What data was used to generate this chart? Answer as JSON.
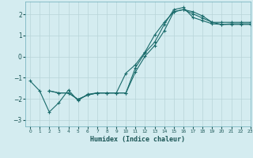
{
  "background_color": "#d4ecf0",
  "grid_color": "#b8d4d8",
  "line_color": "#1a6b6b",
  "xlabel": "Humidex (Indice chaleur)",
  "xlim": [
    -0.5,
    23
  ],
  "ylim": [
    -3.3,
    2.6
  ],
  "yticks": [
    -3,
    -2,
    -1,
    0,
    1,
    2
  ],
  "xticks": [
    0,
    1,
    2,
    3,
    4,
    5,
    6,
    7,
    8,
    9,
    10,
    11,
    12,
    13,
    14,
    15,
    16,
    17,
    18,
    19,
    20,
    21,
    22,
    23
  ],
  "line1_x": [
    0,
    1,
    2,
    3,
    4,
    5,
    6,
    7,
    8,
    9,
    10,
    11,
    12,
    13,
    14,
    15,
    16,
    17,
    18,
    19,
    20,
    21,
    22,
    23
  ],
  "line1_y": [
    -1.15,
    -1.62,
    -2.62,
    -2.18,
    -1.58,
    -2.08,
    -1.78,
    -1.72,
    -1.72,
    -1.72,
    -0.78,
    -0.38,
    0.22,
    1.02,
    1.62,
    2.12,
    2.22,
    2.12,
    1.92,
    1.62,
    1.62,
    1.62,
    1.62,
    1.62
  ],
  "line2_x": [
    2,
    3,
    4,
    5,
    6,
    7,
    8,
    9,
    10,
    11,
    12,
    13,
    14,
    15,
    16,
    17,
    18,
    19,
    20,
    21,
    22,
    23
  ],
  "line2_y": [
    -1.62,
    -1.72,
    -1.72,
    -2.02,
    -1.82,
    -1.72,
    -1.72,
    -1.72,
    -1.72,
    -0.52,
    0.18,
    0.68,
    1.52,
    2.22,
    2.32,
    1.85,
    1.7,
    1.55,
    1.52,
    1.52,
    1.52,
    1.52
  ],
  "line3_x": [
    2,
    3,
    4,
    5,
    6,
    7,
    8,
    9,
    10,
    11,
    12,
    13,
    14,
    15,
    16,
    17,
    18,
    19,
    20,
    21,
    22,
    23
  ],
  "line3_y": [
    -1.62,
    -1.72,
    -1.72,
    -2.02,
    -1.82,
    -1.72,
    -1.72,
    -1.72,
    -1.72,
    -0.72,
    0.02,
    0.52,
    1.22,
    2.12,
    2.22,
    2.02,
    1.82,
    1.62,
    1.52,
    1.55,
    1.55,
    1.55
  ]
}
